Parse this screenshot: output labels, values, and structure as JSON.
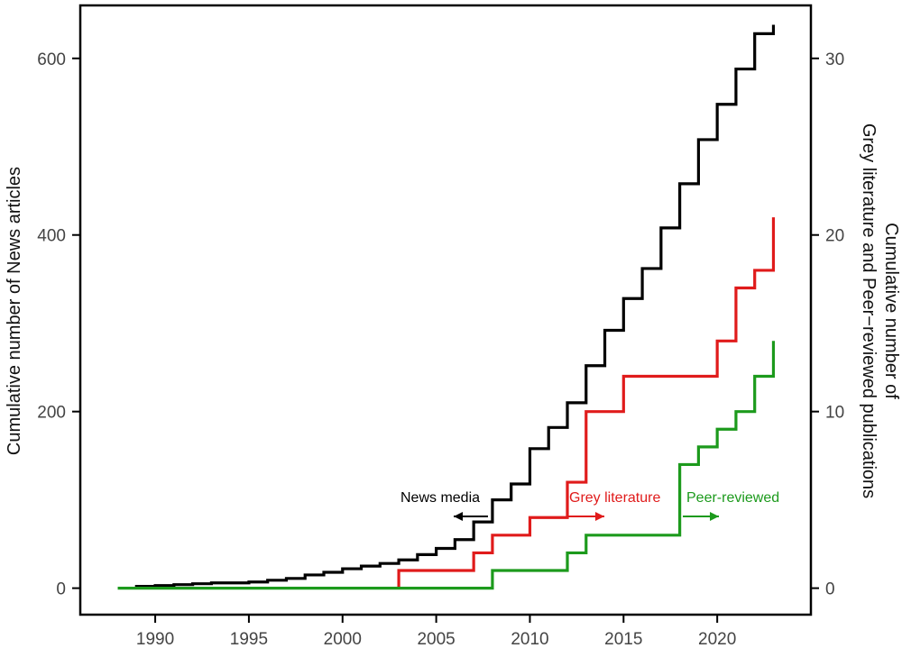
{
  "chart_data": {
    "type": "line",
    "step": true,
    "title": "",
    "xlabel": "",
    "ylabel_left": "Cumulative number of News articles",
    "ylabel_right_line1": "Cumulative number of",
    "ylabel_right_line2": "Grey literature and Peer−reviewed publications",
    "xlim": [
      1986,
      2025
    ],
    "ylim_left": [
      -30,
      660
    ],
    "ylim_right": [
      -1.5,
      33
    ],
    "x_ticks": [
      1990,
      1995,
      2000,
      2005,
      2010,
      2015,
      2020
    ],
    "x_tick_labels": [
      "1990",
      "1995",
      "2000",
      "2005",
      "2010",
      "2015",
      "2020"
    ],
    "y_left_ticks": [
      0,
      200,
      400,
      600
    ],
    "y_left_tick_labels": [
      "0",
      "200",
      "400",
      "600"
    ],
    "y_right_ticks": [
      0,
      10,
      20,
      30
    ],
    "y_right_tick_labels": [
      "0",
      "10",
      "20",
      "30"
    ],
    "grid": false,
    "series": [
      {
        "name": "News media",
        "axis": "left",
        "color": "#000000",
        "x": [
          1989,
          1990,
          1991,
          1992,
          1993,
          1994,
          1995,
          1996,
          1997,
          1998,
          1999,
          2000,
          2001,
          2002,
          2003,
          2004,
          2005,
          2006,
          2007,
          2008,
          2009,
          2010,
          2011,
          2012,
          2013,
          2014,
          2015,
          2016,
          2017,
          2018,
          2019,
          2020,
          2021,
          2022,
          2023
        ],
        "y": [
          2,
          3,
          4,
          5,
          6,
          6,
          7,
          9,
          11,
          15,
          18,
          22,
          25,
          28,
          32,
          38,
          45,
          55,
          75,
          100,
          118,
          158,
          182,
          210,
          252,
          292,
          328,
          362,
          408,
          458,
          508,
          548,
          588,
          628,
          638
        ]
      },
      {
        "name": "Grey literature",
        "axis": "right",
        "color": "#e01b1b",
        "x": [
          2003,
          2007,
          2008,
          2010,
          2012,
          2013,
          2015,
          2020,
          2021,
          2022,
          2023
        ],
        "y": [
          1,
          2,
          3,
          4,
          6,
          10,
          12,
          14,
          17,
          18,
          21
        ]
      },
      {
        "name": "Peer-reviewed",
        "axis": "right",
        "color": "#1c9a1c",
        "x": [
          1988,
          2008,
          2012,
          2013,
          2018,
          2019,
          2020,
          2021,
          2022,
          2023
        ],
        "y": [
          0,
          1,
          2,
          3,
          7,
          8,
          9,
          10,
          12,
          14
        ]
      }
    ],
    "annotations": [
      {
        "text": "News media",
        "color": "#000000",
        "arrow": "left",
        "near_year": 2007
      },
      {
        "text": "Grey literature",
        "color": "#e01b1b",
        "arrow": "right",
        "near_year": 2013
      },
      {
        "text": "Peer-reviewed",
        "color": "#1c9a1c",
        "arrow": "right",
        "near_year": 2019
      }
    ]
  }
}
